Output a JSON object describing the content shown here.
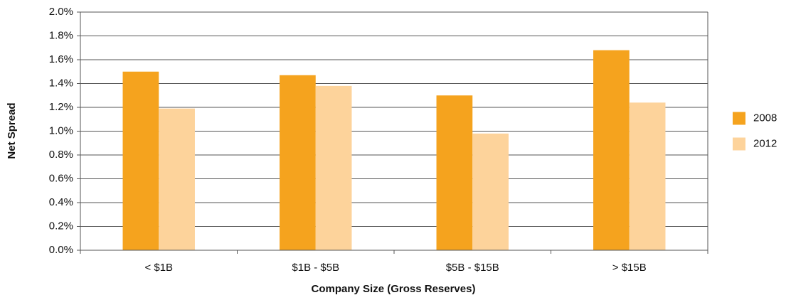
{
  "chart_data": {
    "type": "bar",
    "x_label": "Company Size (Gross Reserves)",
    "y_label": "Net Spread",
    "categories": [
      "< $1B",
      "$1B - $5B",
      "$5B - $15B",
      "> $15B"
    ],
    "series": [
      {
        "name": "2008",
        "color": "#f5a31e",
        "values": [
          1.5,
          1.47,
          1.3,
          1.68
        ]
      },
      {
        "name": "2012",
        "color": "#fdd39b",
        "values": [
          1.19,
          1.38,
          0.98,
          1.24
        ]
      }
    ],
    "ylim": [
      0,
      2
    ],
    "yticks": [
      {
        "value": 0,
        "label": "0.0%"
      },
      {
        "value": 0.2,
        "label": "0.2%"
      },
      {
        "value": 0.4,
        "label": "0.4%"
      },
      {
        "value": 0.6,
        "label": "0.6%"
      },
      {
        "value": 0.8,
        "label": "0.8%"
      },
      {
        "value": 1.0,
        "label": "1.0%"
      },
      {
        "value": 1.2,
        "label": "1.2%"
      },
      {
        "value": 1.4,
        "label": "1.4%"
      },
      {
        "value": 1.6,
        "label": "1.6%"
      },
      {
        "value": 1.8,
        "label": "1.8%"
      },
      {
        "value": 2.0,
        "label": "2.0%"
      }
    ],
    "grid": true,
    "legend": "right"
  }
}
